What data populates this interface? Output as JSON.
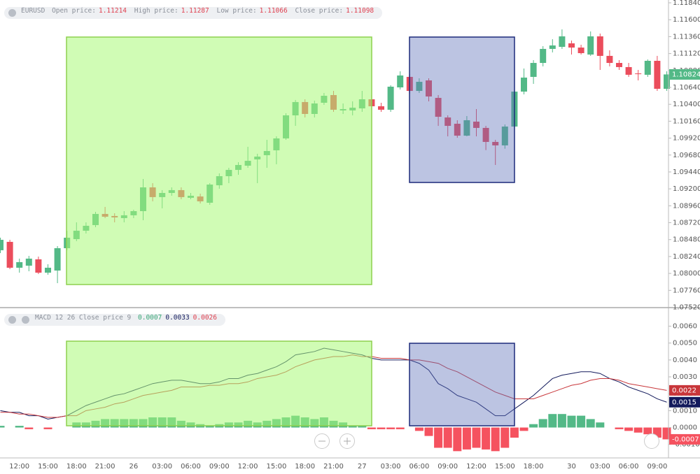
{
  "chart_data": [
    {
      "type": "candlestick",
      "symbol": "EURUSD",
      "info": [
        {
          "label": "Open price:",
          "value": "1.11214"
        },
        {
          "label": "High price:",
          "value": "1.11287"
        },
        {
          "label": "Low price:",
          "value": "1.11066"
        },
        {
          "label": "Close price:",
          "value": "1.11098"
        }
      ],
      "up_color": "#53b987",
      "down_color": "#eb4d5c",
      "open": [
        1.08329,
        1.08448,
        1.08081,
        1.0811,
        1.082,
        1.08011,
        1.08041,
        1.08358,
        1.08487,
        1.08606,
        1.08686,
        1.08844,
        1.08815,
        1.08785,
        1.08825,
        1.08884,
        1.09221,
        1.09083,
        1.09142,
        1.09182,
        1.09073,
        1.09092,
        1.09003,
        1.09251,
        1.0938,
        1.09469,
        1.09529,
        1.09618,
        1.09678,
        1.09747,
        1.09916,
        1.10243,
        1.10432,
        1.10263,
        1.10422,
        1.10531,
        1.10313,
        1.10313,
        1.10342,
        1.10471,
        1.10372,
        1.10323,
        1.1064,
        1.10789,
        1.1059,
        1.10739,
        1.10491,
        1.10213,
        1.10124,
        1.09955,
        1.10154,
        1.10065,
        1.09866,
        1.09817,
        1.10084,
        1.1058,
        1.10789,
        1.10987,
        1.11186,
        1.11215,
        1.11265,
        1.11205,
        1.11106,
        1.11364,
        1.11087,
        1.10987,
        1.10928,
        1.10838,
        1.10819,
        1.11017,
        1.1062
      ],
      "high": [
        1.08507,
        1.08477,
        1.0821,
        1.08249,
        1.08239,
        1.0813,
        1.08388,
        1.08606,
        1.08725,
        1.08725,
        1.08874,
        1.08944,
        1.08854,
        1.08884,
        1.08904,
        1.0934,
        1.09281,
        1.09182,
        1.09221,
        1.09221,
        1.09142,
        1.09132,
        1.09281,
        1.0942,
        1.09499,
        1.09579,
        1.09797,
        1.09698,
        1.09896,
        1.09946,
        1.10273,
        1.10461,
        1.10471,
        1.10452,
        1.10561,
        1.1059,
        1.10412,
        1.10442,
        1.1059,
        1.10531,
        1.10422,
        1.1067,
        1.10868,
        1.10828,
        1.10769,
        1.10769,
        1.10531,
        1.10243,
        1.10174,
        1.10233,
        1.10332,
        1.10094,
        1.09896,
        1.10114,
        1.106,
        1.10908,
        1.11027,
        1.11225,
        1.11324,
        1.11463,
        1.11305,
        1.11245,
        1.11434,
        1.11404,
        1.11166,
        1.11027,
        1.10987,
        1.10888,
        1.11037,
        1.11087,
        1.10868
      ],
      "low": [
        1.08289,
        1.08061,
        1.08011,
        1.08031,
        1.07991,
        1.07981,
        1.07862,
        1.08329,
        1.08458,
        1.08567,
        1.08656,
        1.08785,
        1.08725,
        1.08725,
        1.08785,
        1.08755,
        1.09023,
        1.08924,
        1.09102,
        1.09053,
        1.09053,
        1.08993,
        1.08974,
        1.09202,
        1.09281,
        1.094,
        1.09499,
        1.09281,
        1.09499,
        1.09549,
        1.09896,
        1.10094,
        1.10213,
        1.10213,
        1.10392,
        1.10293,
        1.10263,
        1.10243,
        1.10293,
        1.10323,
        1.10293,
        1.10293,
        1.1061,
        1.10551,
        1.10561,
        1.10442,
        1.10094,
        1.09945,
        1.09925,
        1.09946,
        1.09945,
        1.0975,
        1.09539,
        1.0977,
        1.10065,
        1.10541,
        1.1069,
        1.10938,
        1.11136,
        1.11186,
        1.11106,
        1.11106,
        1.11087,
        1.10888,
        1.10938,
        1.10888,
        1.10789,
        1.10739,
        1.10789,
        1.1059,
        1.1059
      ],
      "close": [
        1.08477,
        1.08081,
        1.0816,
        1.0821,
        1.08011,
        1.08081,
        1.08358,
        1.08507,
        1.08606,
        1.08676,
        1.08844,
        1.08805,
        1.08795,
        1.08825,
        1.08884,
        1.09221,
        1.09083,
        1.09142,
        1.09182,
        1.09083,
        1.09102,
        1.09023,
        1.09261,
        1.0938,
        1.09469,
        1.09539,
        1.09598,
        1.09658,
        1.09737,
        1.09916,
        1.10243,
        1.10432,
        1.10263,
        1.10412,
        1.10521,
        1.10323,
        1.10332,
        1.10352,
        1.10471,
        1.10372,
        1.10323,
        1.1065,
        1.10809,
        1.1059,
        1.10719,
        1.10511,
        1.10223,
        1.10094,
        1.09955,
        1.10174,
        1.10065,
        1.09866,
        1.09817,
        1.10084,
        1.1058,
        1.10779,
        1.10987,
        1.11186,
        1.11235,
        1.11364,
        1.11205,
        1.11126,
        1.11364,
        1.11087,
        1.10987,
        1.10928,
        1.10819,
        1.10828,
        1.11017,
        1.1062,
        1.10824
      ],
      "ylim": [
        1.07515,
        1.1188
      ],
      "yticks": [
        {
          "value": 1.1184,
          "label": "1.11840"
        },
        {
          "value": 1.116,
          "label": "1.11600"
        },
        {
          "value": 1.1136,
          "label": "1.11360"
        },
        {
          "value": 1.1112,
          "label": "1.11120"
        },
        {
          "value": 1.1088,
          "label": "1.10880"
        },
        {
          "value": 1.1064,
          "label": "1.10640"
        },
        {
          "value": 1.104,
          "label": "1.10400"
        },
        {
          "value": 1.1016,
          "label": "1.10160"
        },
        {
          "value": 1.0992,
          "label": "1.09920"
        },
        {
          "value": 1.0968,
          "label": "1.09680"
        },
        {
          "value": 1.0944,
          "label": "1.09440"
        },
        {
          "value": 1.092,
          "label": "1.09200"
        },
        {
          "value": 1.0896,
          "label": "1.08960"
        },
        {
          "value": 1.0872,
          "label": "1.08720"
        },
        {
          "value": 1.0848,
          "label": "1.08480"
        },
        {
          "value": 1.0824,
          "label": "1.08240"
        },
        {
          "value": 1.08,
          "label": "1.08000"
        },
        {
          "value": 1.0776,
          "label": "1.07760"
        },
        {
          "value": 1.0752,
          "label": "1.07520"
        }
      ]
    },
    {
      "type": "macd",
      "title": "MACD 12 26 Close price 9",
      "info": [
        {
          "value": "0.0007",
          "color": "#3aa776"
        },
        {
          "value": "0.0033",
          "color": "#131a5c"
        },
        {
          "value": "0.0026",
          "color": "#e0404f"
        }
      ],
      "categories": [
        null,
        null,
        "12:00",
        null,
        null,
        "15:00",
        null,
        null,
        "18:00",
        null,
        null,
        "21:00",
        null,
        null,
        "26",
        null,
        null,
        "03:00",
        null,
        null,
        "06:00",
        null,
        null,
        "09:00",
        null,
        null,
        "12:00",
        null,
        null,
        "15:00",
        null,
        null,
        "18:00",
        null,
        null,
        "21:00",
        null,
        null,
        "27",
        null,
        null,
        "03:00",
        null,
        null,
        "06:00",
        null,
        null,
        "09:00",
        null,
        null,
        "12:00",
        null,
        null,
        "15:00",
        null,
        null,
        "18:00",
        null,
        null,
        null,
        "30",
        null,
        null,
        "03:00",
        null,
        null,
        "06:00",
        null,
        null,
        "09:00",
        null
      ],
      "series": [
        {
          "color": "#131a5c",
          "values": [
            0.001,
            0.0009,
            0.0009,
            0.0007,
            0.0007,
            0.0005,
            0.0006,
            0.0007,
            0.001,
            0.0013,
            0.0015,
            0.0017,
            0.0019,
            0.002,
            0.0022,
            0.0024,
            0.0026,
            0.0027,
            0.0028,
            0.0028,
            0.0027,
            0.0026,
            0.0026,
            0.0027,
            0.0029,
            0.0029,
            0.0031,
            0.0032,
            0.0034,
            0.0036,
            0.0039,
            0.0043,
            0.0044,
            0.0045,
            0.0047,
            0.0046,
            0.0045,
            0.0044,
            0.0043,
            0.0041,
            0.004,
            0.004,
            0.004,
            0.004,
            0.0038,
            0.0034,
            0.0026,
            0.0023,
            0.0019,
            0.0017,
            0.0015,
            0.0011,
            0.0007,
            0.0007,
            0.0011,
            0.0015,
            0.0019,
            0.0024,
            0.0029,
            0.0031,
            0.0032,
            0.0033,
            0.0033,
            0.0032,
            0.0029,
            0.0027,
            0.0024,
            0.0022,
            0.002,
            0.0017,
            0.0015
          ]
        },
        {
          "color": "#c8363a",
          "values": [
            0.0009,
            0.0009,
            0.0008,
            0.0008,
            0.0007,
            0.0006,
            0.0006,
            0.0007,
            0.0007,
            0.001,
            0.0011,
            0.0012,
            0.0014,
            0.0015,
            0.0017,
            0.0019,
            0.002,
            0.0021,
            0.0022,
            0.0024,
            0.0024,
            0.0024,
            0.0025,
            0.0025,
            0.0026,
            0.0026,
            0.0027,
            0.0029,
            0.003,
            0.0031,
            0.0033,
            0.0036,
            0.0038,
            0.004,
            0.0041,
            0.0042,
            0.0042,
            0.0043,
            0.0042,
            0.0042,
            0.0041,
            0.0041,
            0.0041,
            0.004,
            0.004,
            0.0039,
            0.0038,
            0.0035,
            0.0033,
            0.003,
            0.0027,
            0.0024,
            0.0021,
            0.0019,
            0.0017,
            0.0017,
            0.0017,
            0.0019,
            0.0021,
            0.0023,
            0.0025,
            0.0026,
            0.0028,
            0.0029,
            0.0029,
            0.0028,
            0.0026,
            0.0025,
            0.0024,
            0.0023,
            0.0022
          ]
        }
      ],
      "histogram": {
        "up_color": "#53b987",
        "down_color": "#f5525f",
        "values": [
          0.0001,
          0,
          0.0001,
          -0.0001,
          0,
          -0.0001,
          0,
          0,
          0.0003,
          0.0003,
          0.0004,
          0.0005,
          0.0005,
          0.0005,
          0.0005,
          0.0005,
          0.0006,
          0.0006,
          0.0006,
          0.0004,
          0.0003,
          0.0002,
          0.0001,
          0.0002,
          0.0003,
          0.0003,
          0.0004,
          0.0003,
          0.0004,
          0.0005,
          0.0006,
          0.0007,
          0.0006,
          0.0005,
          0.0006,
          0.0004,
          0.0003,
          0.0001,
          0.0001,
          -0.0001,
          -0.0001,
          -0.0001,
          -0.0001,
          0,
          -0.0002,
          -0.0005,
          -0.0012,
          -0.0012,
          -0.0014,
          -0.0013,
          -0.0012,
          -0.0013,
          -0.0014,
          -0.0012,
          -0.0006,
          -0.0002,
          0.0002,
          0.0005,
          0.0008,
          0.0008,
          0.0007,
          0.0007,
          0.0005,
          0.0003,
          0,
          -0.0001,
          -0.0002,
          -0.0003,
          -0.0004,
          -0.0006,
          -0.0007
        ]
      },
      "ylim": [
        -0.0018,
        0.0071
      ],
      "yticks": [
        {
          "value": 0.006,
          "label": "0.0060"
        },
        {
          "value": 0.005,
          "label": "0.0050"
        },
        {
          "value": 0.004,
          "label": "0.0040"
        },
        {
          "value": 0.003,
          "label": "0.0030"
        },
        {
          "value": 0.002,
          "label": "0.0020"
        },
        {
          "value": 0.001,
          "label": "0.0010"
        },
        {
          "value": 0,
          "label": "0.0000"
        },
        {
          "value": -0.001,
          "label": "-0.0010"
        }
      ]
    }
  ]
}
